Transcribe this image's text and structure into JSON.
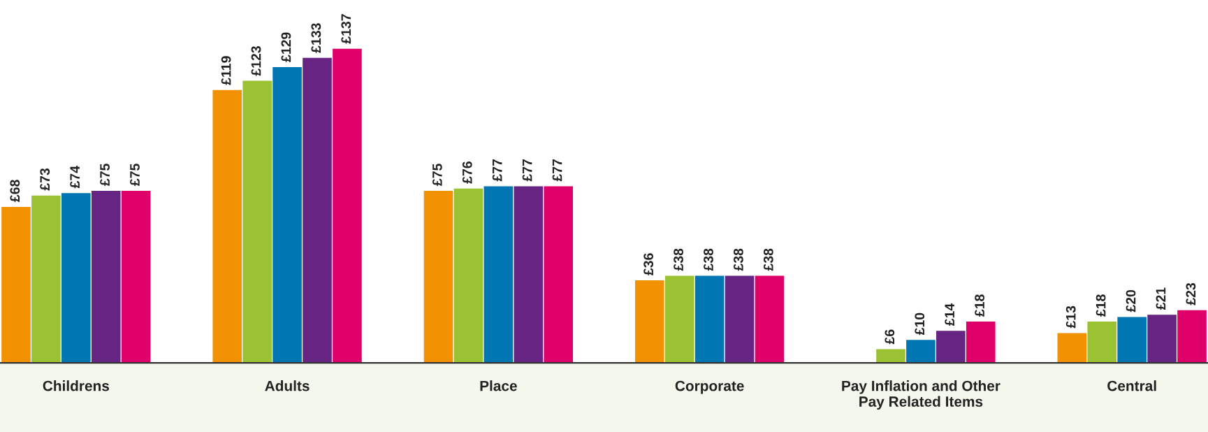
{
  "chart_data": {
    "type": "bar",
    "categories": [
      "Childrens",
      "Adults",
      "Place",
      "Corporate",
      "Pay Inflation and Other\nPay Related Items",
      "Central"
    ],
    "series": [
      {
        "color": "#f39200",
        "values": [
          68,
          119,
          75,
          36,
          null,
          13
        ],
        "value_labels": [
          "£68",
          "£119",
          "£75",
          "£36",
          null,
          "£13"
        ]
      },
      {
        "color": "#9bc232",
        "values": [
          73,
          123,
          76,
          38,
          6,
          18
        ],
        "value_labels": [
          "£73",
          "£123",
          "£76",
          "£38",
          "£6",
          "£18"
        ]
      },
      {
        "color": "#0077b3",
        "values": [
          74,
          129,
          77,
          38,
          10,
          20
        ],
        "value_labels": [
          "£74",
          "£129",
          "£77",
          "£38",
          "£10",
          "£20"
        ]
      },
      {
        "color": "#662483",
        "values": [
          75,
          133,
          77,
          38,
          14,
          21
        ],
        "value_labels": [
          "£75",
          "£133",
          "£77",
          "£38",
          "£14",
          "£21"
        ]
      },
      {
        "color": "#e0006a",
        "values": [
          75,
          137,
          77,
          38,
          18,
          23
        ],
        "value_labels": [
          "£75",
          "£137",
          "£77",
          "£38",
          "£18",
          "£23"
        ]
      }
    ],
    "grid": false,
    "legend": false
  }
}
